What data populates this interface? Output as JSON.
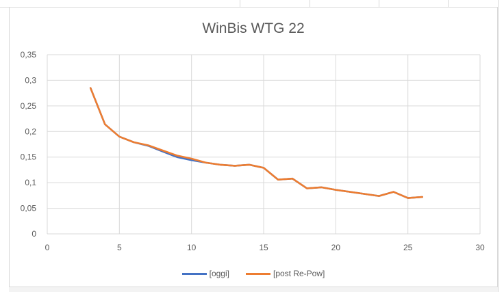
{
  "chart_data": {
    "type": "line",
    "title": "WinBis WTG 22",
    "xlabel": "",
    "ylabel": "",
    "xlim": [
      0,
      30
    ],
    "ylim": [
      0,
      0.35
    ],
    "xticks": [
      "0",
      "5",
      "10",
      "15",
      "20",
      "25",
      "30"
    ],
    "yticks": [
      "0",
      "0,05",
      "0,1",
      "0,15",
      "0,2",
      "0,25",
      "0,3",
      "0,35"
    ],
    "grid": true,
    "legend_position": "bottom",
    "series": [
      {
        "name": "[oggi]",
        "color": "#4472c4",
        "x": [
          3,
          4,
          5,
          6,
          7,
          8,
          9,
          10,
          11,
          12,
          13,
          14,
          15,
          16,
          17,
          18,
          19,
          20,
          21,
          22,
          23,
          24,
          25,
          26
        ],
        "y": [
          0.285,
          0.214,
          0.19,
          0.179,
          0.172,
          0.161,
          0.15,
          0.144,
          0.139,
          0.135,
          0.133,
          0.135,
          0.129,
          0.106,
          0.108,
          0.089,
          0.091,
          0.086,
          0.082,
          0.078,
          0.074,
          0.082,
          0.07,
          0.072
        ]
      },
      {
        "name": "[post Re-Pow]",
        "color": "#ed7d31",
        "x": [
          3,
          4,
          5,
          6,
          7,
          8,
          9,
          10,
          11,
          12,
          13,
          14,
          15,
          16,
          17,
          18,
          19,
          20,
          21,
          22,
          23,
          24,
          25,
          26
        ],
        "y": [
          0.285,
          0.214,
          0.19,
          0.179,
          0.173,
          0.163,
          0.153,
          0.147,
          0.139,
          0.135,
          0.133,
          0.135,
          0.129,
          0.106,
          0.108,
          0.089,
          0.091,
          0.086,
          0.082,
          0.078,
          0.074,
          0.082,
          0.07,
          0.072
        ]
      }
    ]
  }
}
